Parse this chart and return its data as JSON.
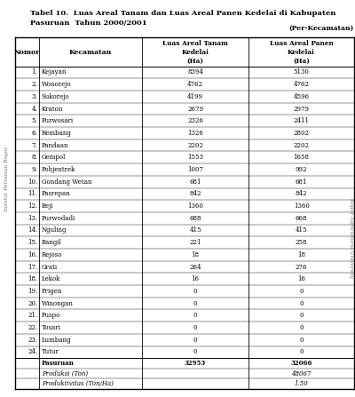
{
  "title_line1": "Tabel 10.  Luas Areal Tanam dan Luas Areal Panen Kedelai di Kabupaten",
  "title_line2": "Pasuruan  Tahun 2000/2001",
  "per_kecamatan": "(Per-Kecamatan)",
  "rows": [
    [
      "1.",
      "Kejayan",
      "8394",
      "5130"
    ],
    [
      "2.",
      "Wonorejo",
      "4762",
      "4762"
    ],
    [
      "3.",
      "Sukorejo",
      "4199",
      "4596"
    ],
    [
      "4.",
      "Kraton",
      "2679",
      "2979"
    ],
    [
      "5.",
      "Purwosari",
      "2326",
      "2411"
    ],
    [
      "6.",
      "Rembang",
      "1326",
      "2802"
    ],
    [
      "7.",
      "Pandaan",
      "2202",
      "2202"
    ],
    [
      "8.",
      "Gempol",
      "1553",
      "1658"
    ],
    [
      "9.",
      "Pohjentrek",
      "1007",
      "992"
    ],
    [
      "10.",
      "Gondang Wetan",
      "681",
      "681"
    ],
    [
      "11.",
      "Pasrepan",
      "842",
      "842"
    ],
    [
      "12.",
      "Beji",
      "1360",
      "1360"
    ],
    [
      "13.",
      "Purwodadi",
      "688",
      "668"
    ],
    [
      "14.",
      "Nguling",
      "415",
      "415"
    ],
    [
      "15.",
      "Bangil",
      "221",
      "258"
    ],
    [
      "16.",
      "Rejoso",
      "18",
      "18"
    ],
    [
      "17.",
      "Grati",
      "264",
      "276"
    ],
    [
      "18.",
      "Lekok",
      "16",
      "16"
    ],
    [
      "19.",
      "Prigen",
      "0",
      "0"
    ],
    [
      "20.",
      "Winongan",
      "0",
      "0"
    ],
    [
      "21.",
      "Puspo",
      "0",
      "0"
    ],
    [
      "22.",
      "Tosari",
      "0",
      "0"
    ],
    [
      "23.",
      "Lumbang",
      "0",
      "0"
    ],
    [
      "24.",
      "Tutur",
      "0",
      "0"
    ]
  ],
  "footer_rows": [
    [
      "",
      "Pasuruan",
      "32953",
      "32066",
      "bold",
      "normal"
    ],
    [
      "",
      "Produksi (Ton)",
      "",
      "48067",
      "normal",
      "italic"
    ],
    [
      "",
      "Produktivitas (Ton/Ha)",
      "",
      "1.50",
      "normal",
      "italic"
    ]
  ],
  "bg_color": "#ffffff",
  "left_watermark": "Institut Pertanian Bogor",
  "right_watermark": "Bogor Agricultural University"
}
